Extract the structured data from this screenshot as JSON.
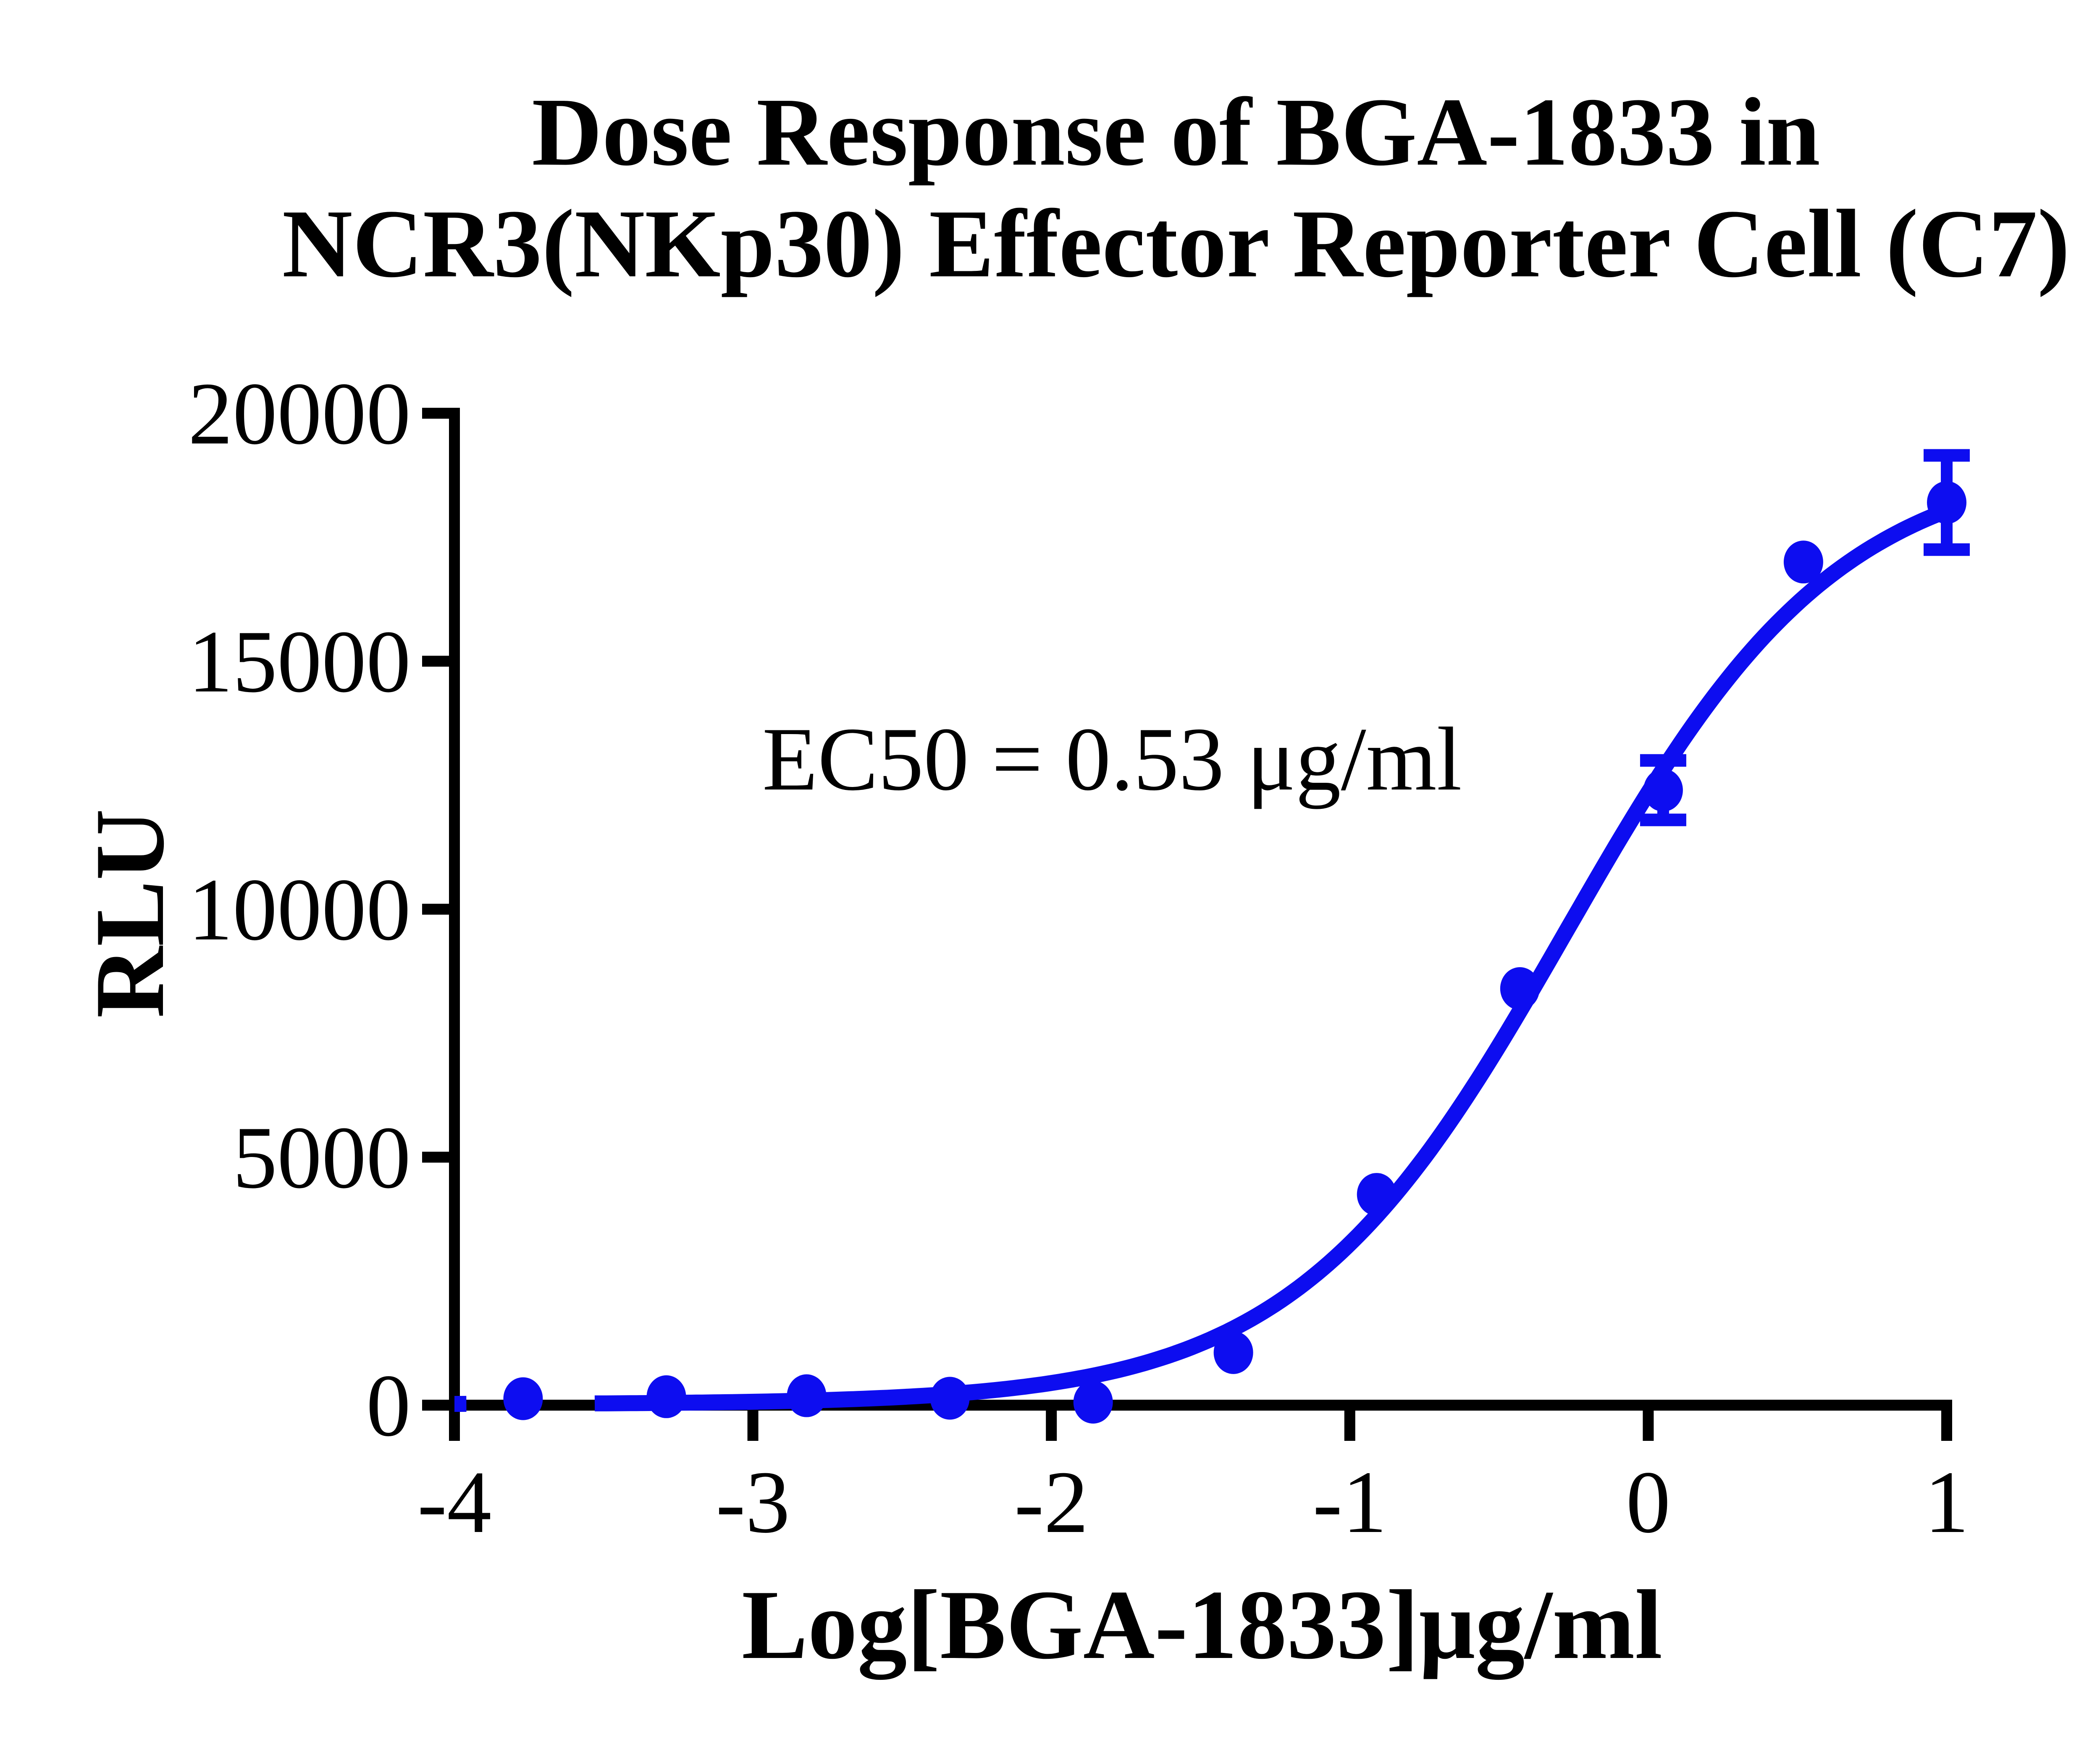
{
  "chart_data": {
    "type": "scatter",
    "title_line1": "Dose Response of BGA-1833 in",
    "title_line2": "NCR3(NKp30) Effector Reporter Cell (C7)",
    "xlabel": "Log[BGA-1833]μg/ml",
    "ylabel": "RLU",
    "annotation": "EC50 = 0.53 μg/ml",
    "ec50_ug_per_ml": 0.53,
    "xlim": [
      -4,
      1
    ],
    "ylim": [
      0,
      20000
    ],
    "x_ticks": [
      -4,
      -3,
      -2,
      -1,
      0,
      1
    ],
    "y_ticks": [
      0,
      5000,
      10000,
      15000,
      20000
    ],
    "grid": false,
    "legend_position": "none",
    "axis_color": "#000000",
    "series": [
      {
        "name": "BGA-1833",
        "color": "#0d0df0",
        "marker": "circle",
        "points": [
          {
            "x": -3.77,
            "y": 130
          },
          {
            "x": -3.29,
            "y": 170
          },
          {
            "x": -2.82,
            "y": 190
          },
          {
            "x": -2.34,
            "y": 140
          },
          {
            "x": -1.86,
            "y": 60
          },
          {
            "x": -1.39,
            "y": 1060
          },
          {
            "x": -0.91,
            "y": 4250
          },
          {
            "x": -0.43,
            "y": 8400
          },
          {
            "x": 0.05,
            "y": 12400,
            "err": 600
          },
          {
            "x": 0.52,
            "y": 17000
          },
          {
            "x": 1.0,
            "y": 18200,
            "err": 950
          }
        ]
      }
    ],
    "fit_curve": {
      "model": "4PL sigmoid",
      "bottom": 20,
      "top": 19150,
      "log_ec50": -0.272,
      "hill_slope": 0.95,
      "segments": [
        [
          -4.0,
          -3.95
        ],
        [
          -3.53,
          1.0
        ]
      ]
    }
  }
}
